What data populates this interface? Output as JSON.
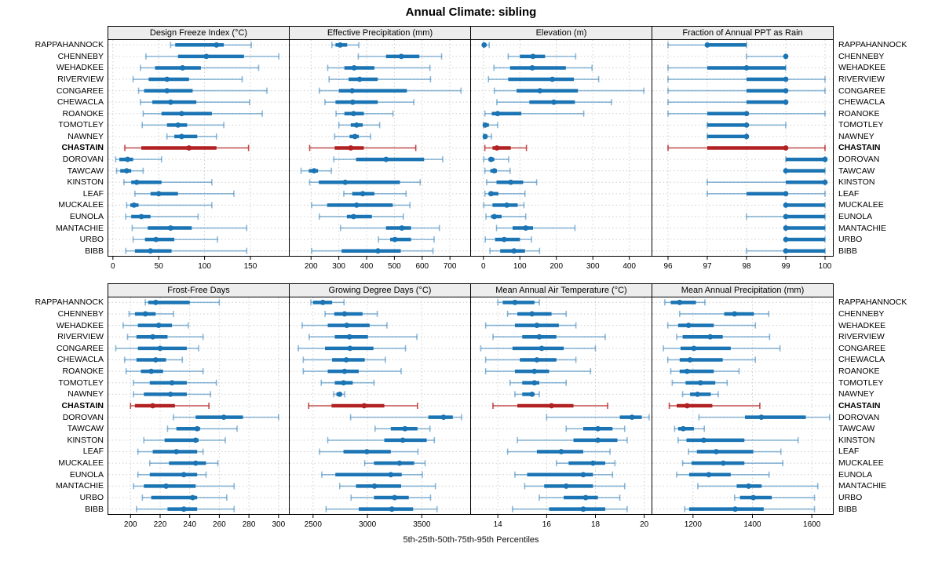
{
  "title": "Annual Climate: sibling",
  "caption": "5th-25th-50th-75th-95th Percentiles",
  "highlight_series": "CHASTAIN",
  "series_labels": [
    "RAPPAHANNOCK",
    "CHENNEBY",
    "WEHADKEE",
    "RIVERVIEW",
    "CONGAREE",
    "CHEWACLA",
    "ROANOKE",
    "TOMOTLEY",
    "NAWNEY",
    "CHASTAIN",
    "DOROVAN",
    "TAWCAW",
    "KINSTON",
    "LEAF",
    "MUCKALEE",
    "EUNOLA",
    "MANTACHIE",
    "URBO",
    "BIBB"
  ],
  "colors": {
    "series_main": "#1B74B3",
    "series_light": "rgba(27,116,179,0.5)",
    "highlight_main": "#B22222",
    "highlight_light": "rgba(178,34,34,0.8)",
    "grid": "#CFCFCF",
    "strip_bg": "#EDEDED",
    "border": "#000000"
  },
  "chart_data": [
    {
      "type": "interval",
      "title": "Design Freeze Index (°C)",
      "percentiles": [
        5,
        25,
        50,
        75,
        95
      ],
      "xlim": [
        -5,
        192
      ],
      "ticks": [
        0,
        50,
        100,
        150
      ],
      "values": [
        [
          63,
          68,
          113,
          121,
          151
        ],
        [
          36,
          71,
          102,
          143,
          181
        ],
        [
          30,
          46,
          76,
          96,
          159
        ],
        [
          22,
          39,
          59,
          83,
          141
        ],
        [
          28,
          34,
          59,
          87,
          168
        ],
        [
          30,
          43,
          63,
          91,
          149
        ],
        [
          33,
          53,
          75,
          108,
          163
        ],
        [
          32,
          59,
          71,
          81,
          121
        ],
        [
          59,
          67,
          75,
          92,
          113
        ],
        [
          13,
          31,
          83,
          113,
          148
        ],
        [
          3,
          7,
          16,
          22,
          53
        ],
        [
          4,
          8,
          15,
          20,
          33
        ],
        [
          12,
          20,
          26,
          53,
          108
        ],
        [
          24,
          41,
          50,
          71,
          132
        ],
        [
          15,
          19,
          23,
          28,
          108
        ],
        [
          14,
          20,
          31,
          41,
          93
        ],
        [
          21,
          38,
          63,
          86,
          146
        ],
        [
          22,
          35,
          47,
          67,
          114
        ],
        [
          14,
          24,
          41,
          64,
          146
        ]
      ]
    },
    {
      "type": "interval",
      "title": "Effective Precipitation (mm)",
      "percentiles": [
        5,
        25,
        50,
        75,
        95
      ],
      "xlim": [
        123,
        773
      ],
      "ticks": [
        200,
        300,
        400,
        500,
        600,
        700
      ],
      "values": [
        [
          275,
          288,
          305,
          330,
          372
        ],
        [
          370,
          470,
          525,
          590,
          670
        ],
        [
          260,
          320,
          355,
          428,
          628
        ],
        [
          265,
          335,
          375,
          440,
          630
        ],
        [
          230,
          300,
          348,
          545,
          740
        ],
        [
          250,
          288,
          350,
          440,
          570
        ],
        [
          290,
          320,
          353,
          390,
          495
        ],
        [
          300,
          343,
          364,
          386,
          447
        ],
        [
          285,
          339,
          358,
          372,
          414
        ],
        [
          195,
          285,
          343,
          390,
          577
        ],
        [
          282,
          362,
          470,
          607,
          674
        ],
        [
          164,
          192,
          211,
          225,
          273
        ],
        [
          195,
          228,
          323,
          520,
          593
        ],
        [
          318,
          348,
          386,
          428,
          542
        ],
        [
          202,
          258,
          364,
          494,
          556
        ],
        [
          230,
          329,
          353,
          419,
          532
        ],
        [
          306,
          470,
          527,
          560,
          662
        ],
        [
          443,
          485,
          502,
          560,
          643
        ],
        [
          202,
          310,
          441,
          523,
          639
        ]
      ]
    },
    {
      "type": "interval",
      "title": "Elevation (m)",
      "percentiles": [
        5,
        25,
        50,
        75,
        95
      ],
      "xlim": [
        -34,
        461
      ],
      "ticks": [
        0,
        100,
        200,
        300,
        400
      ],
      "values": [
        [
          0,
          1,
          2,
          8,
          16
        ],
        [
          68,
          100,
          136,
          169,
          253
        ],
        [
          29,
          73,
          134,
          226,
          298
        ],
        [
          14,
          68,
          189,
          248,
          316
        ],
        [
          30,
          91,
          155,
          259,
          440
        ],
        [
          37,
          126,
          193,
          251,
          351
        ],
        [
          4,
          23,
          39,
          104,
          275
        ],
        [
          0,
          2,
          5,
          15,
          39
        ],
        [
          0,
          2,
          5,
          10,
          22
        ],
        [
          4,
          25,
          37,
          75,
          118
        ],
        [
          1,
          14,
          21,
          30,
          69
        ],
        [
          4,
          19,
          30,
          37,
          73
        ],
        [
          9,
          36,
          75,
          109,
          146
        ],
        [
          4,
          14,
          21,
          41,
          114
        ],
        [
          1,
          25,
          64,
          94,
          111
        ],
        [
          7,
          21,
          30,
          50,
          116
        ],
        [
          36,
          80,
          116,
          136,
          251
        ],
        [
          5,
          32,
          57,
          100,
          132
        ],
        [
          18,
          46,
          84,
          114,
          154
        ]
      ]
    },
    {
      "type": "interval",
      "title": "Fraction of Annual PPT as Rain",
      "percentiles": [
        5,
        25,
        50,
        75,
        95
      ],
      "xlim": [
        95.6,
        100.2
      ],
      "ticks": [
        96,
        97,
        98,
        99,
        100
      ],
      "values": [
        [
          96,
          97,
          97,
          98,
          98
        ],
        [
          98,
          99,
          99,
          99,
          99
        ],
        [
          96,
          97,
          98,
          99,
          99
        ],
        [
          96,
          98,
          99,
          99,
          100
        ],
        [
          96,
          98,
          99,
          99,
          100
        ],
        [
          96,
          98,
          99,
          99,
          99
        ],
        [
          96,
          97,
          98,
          98,
          100
        ],
        [
          97,
          97,
          98,
          98,
          99
        ],
        [
          97,
          97,
          98,
          98,
          98
        ],
        [
          96,
          97,
          99,
          99,
          100
        ],
        [
          99,
          99,
          100,
          100,
          100
        ],
        [
          99,
          99,
          99,
          100,
          100
        ],
        [
          97,
          99,
          100,
          100,
          100
        ],
        [
          97,
          98,
          99,
          99,
          100
        ],
        [
          99,
          99,
          99,
          100,
          100
        ],
        [
          98,
          99,
          99,
          100,
          100
        ],
        [
          99,
          99,
          99,
          100,
          100
        ],
        [
          99,
          99,
          99,
          100,
          100
        ],
        [
          98,
          99,
          99,
          100,
          100
        ]
      ]
    },
    {
      "type": "interval",
      "title": "Frost-Free Days",
      "percentiles": [
        5,
        25,
        50,
        75,
        95
      ],
      "xlim": [
        185,
        307
      ],
      "ticks": [
        200,
        220,
        240,
        260,
        280,
        300
      ],
      "values": [
        [
          210,
          212,
          217,
          240,
          260
        ],
        [
          199,
          203,
          210,
          217,
          229
        ],
        [
          195,
          205,
          219,
          228,
          239
        ],
        [
          198,
          204,
          215,
          225,
          249
        ],
        [
          190,
          205,
          220,
          238,
          246
        ],
        [
          196,
          204,
          217,
          224,
          235
        ],
        [
          197,
          207,
          214,
          222,
          249
        ],
        [
          202,
          213,
          228,
          238,
          258
        ],
        [
          202,
          209,
          227,
          238,
          254
        ],
        [
          200,
          203,
          215,
          230,
          253
        ],
        [
          229,
          244,
          263,
          276,
          300
        ],
        [
          225,
          231,
          245,
          247,
          272
        ],
        [
          209,
          223,
          244,
          246,
          264
        ],
        [
          205,
          215,
          231,
          245,
          249
        ],
        [
          213,
          226,
          244,
          251,
          259
        ],
        [
          205,
          213,
          236,
          245,
          251
        ],
        [
          202,
          209,
          224,
          244,
          270
        ],
        [
          208,
          214,
          242,
          245,
          265
        ],
        [
          204,
          225,
          236,
          245,
          270
        ]
      ]
    },
    {
      "type": "interval",
      "title": "Growing Degree Days (°C)",
      "percentiles": [
        5,
        25,
        50,
        75,
        95
      ],
      "xlim": [
        2285,
        3945
      ],
      "ticks": [
        2500,
        3000,
        3500
      ],
      "values": [
        [
          2480,
          2500,
          2590,
          2675,
          2785
        ],
        [
          2610,
          2695,
          2790,
          2955,
          3090
        ],
        [
          2400,
          2635,
          2810,
          3020,
          3180
        ],
        [
          2465,
          2700,
          2835,
          3005,
          3455
        ],
        [
          2365,
          2610,
          2840,
          3055,
          3350
        ],
        [
          2410,
          2675,
          2805,
          2975,
          3165
        ],
        [
          2410,
          2635,
          2790,
          2920,
          3310
        ],
        [
          2575,
          2700,
          2780,
          2865,
          3060
        ],
        [
          2690,
          2715,
          2745,
          2765,
          2790
        ],
        [
          2460,
          2670,
          2970,
          3155,
          3460
        ],
        [
          2845,
          3560,
          3700,
          3785,
          3865
        ],
        [
          3070,
          3215,
          3345,
          3460,
          3575
        ],
        [
          2635,
          3155,
          3325,
          3545,
          3615
        ],
        [
          2560,
          2780,
          2995,
          3215,
          3465
        ],
        [
          2975,
          3060,
          3295,
          3430,
          3530
        ],
        [
          2580,
          2705,
          3215,
          3315,
          3505
        ],
        [
          2745,
          2895,
          3065,
          3310,
          3625
        ],
        [
          2850,
          3060,
          3250,
          3380,
          3580
        ],
        [
          2620,
          2920,
          3225,
          3420,
          3640
        ]
      ]
    },
    {
      "type": "interval",
      "title": "Mean Annual Air Temperature (°C)",
      "percentiles": [
        5,
        25,
        50,
        75,
        95
      ],
      "xlim": [
        12.9,
        20.3
      ],
      "ticks": [
        14,
        16,
        18,
        20
      ],
      "values": [
        [
          14.0,
          14.2,
          14.7,
          15.5,
          15.7
        ],
        [
          14.4,
          14.8,
          15.4,
          16.2,
          16.8
        ],
        [
          13.5,
          14.7,
          15.6,
          16.5,
          17.2
        ],
        [
          13.8,
          15.0,
          15.7,
          16.4,
          18.4
        ],
        [
          13.3,
          14.6,
          15.8,
          16.7,
          18.0
        ],
        [
          13.5,
          14.9,
          15.6,
          16.4,
          17.2
        ],
        [
          13.5,
          14.7,
          15.5,
          16.1,
          17.8
        ],
        [
          14.5,
          15.0,
          15.5,
          15.7,
          16.8
        ],
        [
          14.7,
          15.0,
          15.4,
          15.5,
          15.7
        ],
        [
          13.8,
          14.8,
          16.2,
          17.1,
          18.5
        ],
        [
          16.0,
          19.0,
          19.5,
          19.9,
          20.2
        ],
        [
          16.8,
          17.5,
          18.1,
          18.7,
          19.2
        ],
        [
          14.8,
          17.1,
          18.1,
          18.9,
          19.3
        ],
        [
          14.4,
          15.6,
          16.6,
          17.5,
          18.6
        ],
        [
          16.4,
          16.9,
          17.9,
          18.4,
          18.8
        ],
        [
          14.7,
          15.2,
          17.5,
          17.9,
          18.7
        ],
        [
          15.1,
          15.9,
          16.8,
          17.9,
          19.2
        ],
        [
          15.7,
          16.7,
          17.6,
          18.1,
          19.0
        ],
        [
          14.6,
          16.1,
          17.5,
          18.4,
          19.3
        ]
      ]
    },
    {
      "type": "interval",
      "title": "Mean Annual Precipitation (mm)",
      "percentiles": [
        5,
        25,
        50,
        75,
        95
      ],
      "xlim": [
        1063,
        1671
      ],
      "ticks": [
        1200,
        1400,
        1600
      ],
      "values": [
        [
          1105,
          1125,
          1155,
          1210,
          1240
        ],
        [
          1155,
          1305,
          1340,
          1405,
          1455
        ],
        [
          1115,
          1150,
          1185,
          1270,
          1410
        ],
        [
          1145,
          1165,
          1258,
          1300,
          1458
        ],
        [
          1100,
          1158,
          1203,
          1327,
          1493
        ],
        [
          1115,
          1155,
          1190,
          1300,
          1410
        ],
        [
          1125,
          1155,
          1180,
          1270,
          1355
        ],
        [
          1130,
          1175,
          1225,
          1275,
          1315
        ],
        [
          1165,
          1190,
          1215,
          1260,
          1285
        ],
        [
          1120,
          1145,
          1180,
          1265,
          1425
        ],
        [
          1220,
          1375,
          1430,
          1580,
          1660
        ],
        [
          1138,
          1150,
          1167,
          1203,
          1238
        ],
        [
          1150,
          1178,
          1236,
          1373,
          1554
        ],
        [
          1185,
          1213,
          1278,
          1403,
          1496
        ],
        [
          1165,
          1195,
          1302,
          1373,
          1502
        ],
        [
          1145,
          1187,
          1253,
          1327,
          1456
        ],
        [
          1216,
          1347,
          1387,
          1431,
          1620
        ],
        [
          1340,
          1358,
          1403,
          1465,
          1609
        ],
        [
          1172,
          1187,
          1342,
          1438,
          1609
        ]
      ]
    }
  ]
}
